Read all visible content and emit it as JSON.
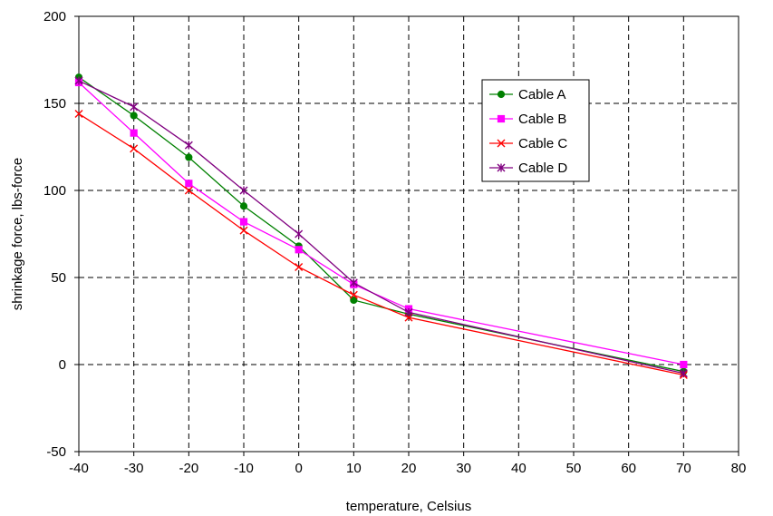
{
  "chart_data": {
    "type": "line",
    "title": "",
    "xlabel": "temperature, Celsius",
    "ylabel": "shrinkage force, lbs-force",
    "xlim": [
      -40,
      80
    ],
    "ylim": [
      -50,
      200
    ],
    "xticks": [
      -40,
      -30,
      -20,
      -10,
      0,
      10,
      20,
      30,
      40,
      50,
      60,
      70,
      80
    ],
    "yticks": [
      -50,
      0,
      50,
      100,
      150,
      200
    ],
    "x_tick_labels": [
      "-40",
      "-30",
      "-20",
      "-10",
      "0",
      "10",
      "20",
      "30",
      "40",
      "50",
      "60",
      "70",
      "80"
    ],
    "y_tick_labels": [
      "-50",
      "0",
      "50",
      "100",
      "150",
      "200"
    ],
    "grid": true,
    "legend_position": "top-right",
    "series": [
      {
        "name": "Cable A",
        "color": "#008000",
        "marker": "circle",
        "x": [
          -40,
          -30,
          -20,
          -10,
          0,
          10,
          20,
          70
        ],
        "y": [
          165,
          143,
          119,
          91,
          68,
          37,
          29,
          -4
        ]
      },
      {
        "name": "Cable B",
        "color": "#ff00ff",
        "marker": "square",
        "x": [
          -40,
          -30,
          -20,
          -10,
          0,
          10,
          20,
          70
        ],
        "y": [
          162,
          133,
          104,
          82,
          66,
          46,
          32,
          0
        ]
      },
      {
        "name": "Cable C",
        "color": "#ff0000",
        "marker": "x",
        "x": [
          -40,
          -30,
          -20,
          -10,
          0,
          10,
          20,
          70
        ],
        "y": [
          144,
          124,
          100,
          77,
          56,
          40,
          27,
          -6
        ]
      },
      {
        "name": "Cable D",
        "color": "#800080",
        "marker": "star",
        "x": [
          -40,
          -30,
          -20,
          -10,
          0,
          10,
          20,
          70
        ],
        "y": [
          163,
          148,
          126,
          100,
          75,
          47,
          30,
          -5
        ]
      }
    ]
  }
}
